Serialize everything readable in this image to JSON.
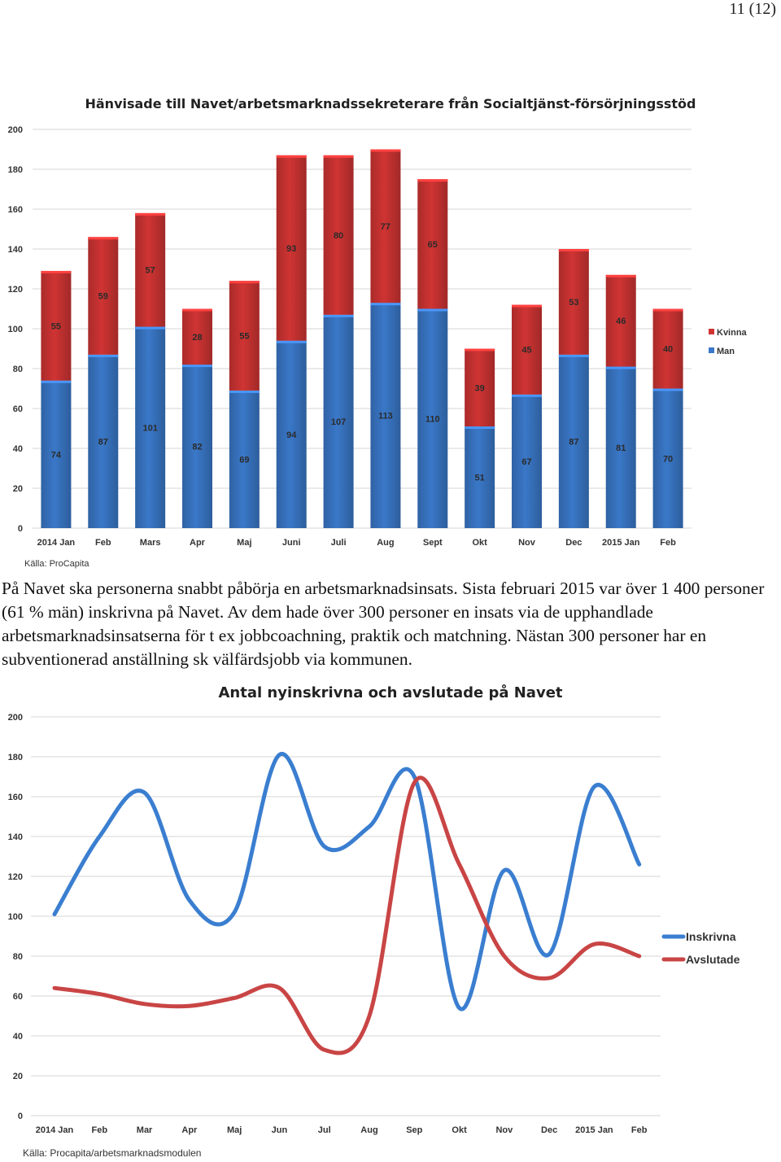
{
  "page_number": "11 (12)",
  "chart_data": [
    {
      "type": "bar",
      "stacked": true,
      "title": "Hänvisade till Navet/arbetsmarknadssekreterare från Socialtjänst-försörjningsstöd",
      "categories": [
        "2014 Jan",
        "Feb",
        "Mars",
        "Apr",
        "Maj",
        "Juni",
        "Juli",
        "Aug",
        "Sept",
        "Okt",
        "Nov",
        "Dec",
        "2015 Jan",
        "Feb"
      ],
      "series": [
        {
          "name": "Man",
          "values": [
            74,
            87,
            101,
            82,
            69,
            94,
            107,
            113,
            110,
            51,
            67,
            87,
            81,
            70
          ],
          "color": "#3a78c8"
        },
        {
          "name": "Kvinna",
          "values": [
            55,
            59,
            57,
            28,
            55,
            93,
            80,
            77,
            65,
            39,
            45,
            53,
            46,
            40
          ],
          "color": "#cf3433"
        }
      ],
      "legend_order": [
        "Kvinna",
        "Man"
      ],
      "legend_position": "right",
      "yticks": [
        "0",
        "20",
        "40",
        "60",
        "80",
        "100",
        "120",
        "140",
        "160",
        "180",
        "200"
      ],
      "ylim": [
        0,
        200
      ],
      "grid": true,
      "source": "Källa: ProCapita"
    },
    {
      "type": "line",
      "smooth": true,
      "title": "Antal nyinskrivna och avslutade på Navet",
      "categories": [
        "2014 Jan",
        "Feb",
        "Mar",
        "Apr",
        "Maj",
        "Jun",
        "Jul",
        "Aug",
        "Sep",
        "Okt",
        "Nov",
        "Dec",
        "2015 Jan",
        "Feb"
      ],
      "series": [
        {
          "name": "Inskrivna",
          "values": [
            101,
            140,
            162,
            108,
            102,
            181,
            135,
            145,
            170,
            54,
            123,
            81,
            165,
            126
          ],
          "color": "#3a7ed0"
        },
        {
          "name": "Avslutade",
          "values": [
            64,
            61,
            56,
            55,
            59,
            64,
            33,
            50,
            167,
            126,
            80,
            69,
            86,
            80
          ],
          "color": "#c94545"
        }
      ],
      "legend_position": "right",
      "yticks": [
        "0",
        "20",
        "40",
        "60",
        "80",
        "100",
        "120",
        "140",
        "160",
        "180",
        "200"
      ],
      "ylim": [
        0,
        200
      ],
      "grid": true,
      "source": "Källa: Procapita/arbetsmarknadsmodulen"
    }
  ],
  "body_text": "På Navet ska personerna snabbt påbörja en arbetsmarknadsinsats. Sista februari 2015 var över 1 400 personer (61 % män) inskrivna på Navet. Av dem hade över 300 personer en insats via de upphandlade arbetsmarknadsinsatserna för t ex jobbcoachning, praktik och matchning. Nästan 300 personer har en subventionerad anställning sk välfärdsjobb via kommunen."
}
